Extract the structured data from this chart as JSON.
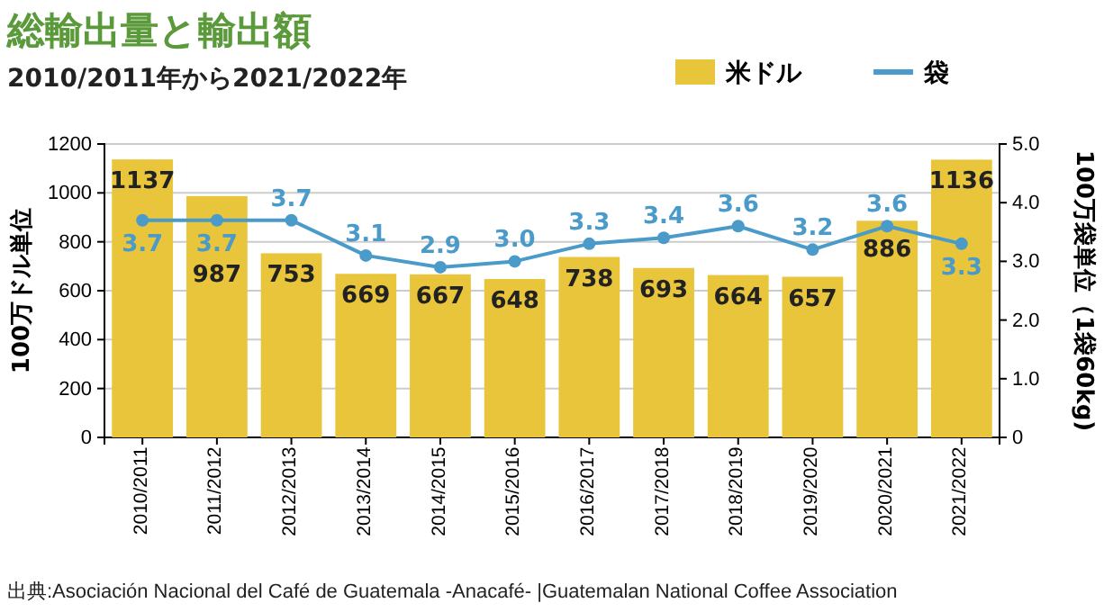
{
  "chart_data": {
    "type": "bar",
    "title": "総輸出量と輸出額",
    "subtitle": "2010/2011年から2021/2022年",
    "categories": [
      "2010/2011",
      "2011/2012",
      "2012/2013",
      "2013/2014",
      "2014/2015",
      "2015/2016",
      "2016/2017",
      "2017/2018",
      "2018/2019",
      "2019/2020",
      "2020/2021",
      "2021/2022"
    ],
    "series": [
      {
        "name": "米ドル",
        "color": "#e9c53b",
        "values": [
          1137,
          987,
          753,
          669,
          667,
          648,
          738,
          693,
          664,
          657,
          886,
          1136
        ],
        "value_labels": [
          "1137",
          "987",
          "753",
          "669",
          "667",
          "648",
          "738",
          "693",
          "664",
          "657",
          "886",
          "1136"
        ]
      },
      {
        "name": "袋",
        "type": "line",
        "axis": "y2",
        "color": "#4a9bc9",
        "values": [
          3.7,
          3.7,
          3.7,
          3.1,
          2.9,
          3.0,
          3.3,
          3.4,
          3.6,
          3.2,
          3.6,
          3.3
        ],
        "value_labels": [
          "3.7",
          "3.7",
          "3.7",
          "3.1",
          "2.9",
          "3.0",
          "3.3",
          "3.4",
          "3.6",
          "3.2",
          "3.6",
          "3.3"
        ]
      }
    ],
    "ylabel": "100万ドル単位",
    "y2label": "100万袋単位（1袋60kg)",
    "ylim": [
      0,
      1200
    ],
    "yticks": [
      0,
      200,
      400,
      600,
      800,
      1000,
      1200
    ],
    "y2lim": [
      0,
      5
    ],
    "y2ticks": [
      {
        "value": 0,
        "label": "0"
      },
      {
        "value": 1,
        "label": "1.0"
      },
      {
        "value": 2,
        "label": "2.0"
      },
      {
        "value": 3,
        "label": "3.0"
      },
      {
        "value": 4,
        "label": "4.0"
      },
      {
        "value": 5,
        "label": "5.0"
      }
    ],
    "grid": "y",
    "legend": "top right",
    "marker": "circle",
    "annotations": [
      "出典:Asociación Nacional del Café de Guatemala -Anacafé-  |Guatemalan National Coffee Association"
    ]
  }
}
